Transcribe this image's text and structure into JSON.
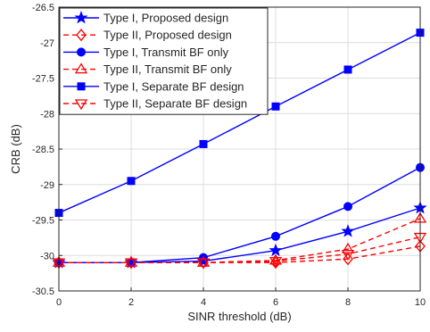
{
  "chart_data": {
    "type": "line",
    "title": "",
    "xlabel": "SINR threshold (dB)",
    "ylabel": "CRB (dB)",
    "xlim": [
      0,
      10
    ],
    "ylim": [
      -30.5,
      -26.5
    ],
    "grid": true,
    "legend_position": "top-left",
    "x": [
      0,
      2,
      4,
      6,
      8,
      10
    ],
    "x_ticks": [
      "0",
      "2",
      "4",
      "6",
      "8",
      "10"
    ],
    "y_ticks": [
      -30.5,
      -30,
      -29.5,
      -29,
      -28.5,
      -28,
      -27.5,
      -27,
      -26.5
    ],
    "y_tick_labels": [
      "-30.5",
      "-30",
      "-29.5",
      "-29",
      "-28.5",
      "-28",
      "-27.5",
      "-27",
      "-26.5"
    ],
    "series": [
      {
        "name": "Type I, Proposed design",
        "color": "#0000FF",
        "dash": "solid",
        "marker": "star",
        "values": [
          -30.1,
          -30.1,
          -30.08,
          -29.93,
          -29.66,
          -29.33
        ]
      },
      {
        "name": "Type II, Proposed design",
        "color": "#FF0000",
        "dash": "dashed",
        "marker": "diamond",
        "values": [
          -30.1,
          -30.1,
          -30.1,
          -30.1,
          -30.05,
          -29.87
        ]
      },
      {
        "name": "Type I, Transmit BF only",
        "color": "#0000FF",
        "dash": "solid",
        "marker": "circle",
        "values": [
          -30.1,
          -30.1,
          -30.03,
          -29.73,
          -29.31,
          -28.76
        ]
      },
      {
        "name": "Type II, Transmit BF only",
        "color": "#FF0000",
        "dash": "dashed",
        "marker": "triangle-up",
        "values": [
          -30.1,
          -30.1,
          -30.1,
          -30.07,
          -29.91,
          -29.48
        ]
      },
      {
        "name": "Type I, Separate BF design",
        "color": "#0000FF",
        "dash": "solid",
        "marker": "square",
        "values": [
          -29.4,
          -28.95,
          -28.43,
          -27.9,
          -27.38,
          -26.86
        ]
      },
      {
        "name": "Type II, Separate BF design",
        "color": "#FF0000",
        "dash": "dashed",
        "marker": "triangle-down",
        "values": [
          -30.1,
          -30.1,
          -30.1,
          -30.08,
          -29.98,
          -29.74
        ]
      }
    ]
  }
}
